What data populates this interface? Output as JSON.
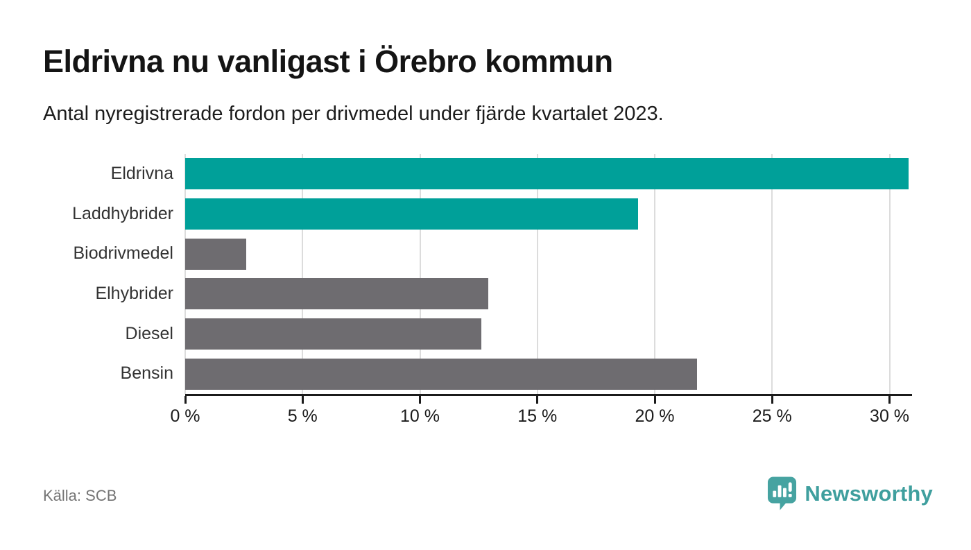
{
  "source": "Källa: SCB",
  "brand": {
    "name": "Newsworthy",
    "icon": "speech-bubble-bar-chart-exclamation-icon"
  },
  "colors": {
    "highlight_bar": "#00a099",
    "default_bar": "#6e6c70",
    "gridline": "#dcdcdc",
    "axis": "#1b1b1b",
    "title_text": "#141414",
    "category_text": "#333333",
    "source_text": "#757575",
    "logo_teal": "#3f9f9e"
  },
  "chart_data": {
    "type": "bar",
    "orientation": "horizontal",
    "title": "Eldrivna nu vanligast i Örebro kommun",
    "subtitle": "Antal nyregistrerade fordon per drivmedel under fjärde kvartalet 2023.",
    "categories": [
      "Eldrivna",
      "Laddhybrider",
      "Biodrivmedel",
      "Elhybrider",
      "Diesel",
      "Bensin"
    ],
    "values": [
      30.8,
      19.3,
      2.6,
      12.9,
      12.6,
      21.8
    ],
    "unit": "%",
    "bar_colors": [
      "#00a099",
      "#00a099",
      "#6e6c70",
      "#6e6c70",
      "#6e6c70",
      "#6e6c70"
    ],
    "x_tick_values": [
      0,
      5,
      10,
      15,
      20,
      25,
      30
    ],
    "x_tick_labels": [
      "0 %",
      "5 %",
      "10 %",
      "15 %",
      "20 %",
      "25 %",
      "30 %"
    ],
    "xlim": [
      0,
      30.9
    ],
    "grid": "vertical",
    "legend": "none",
    "value_labels": "none"
  }
}
